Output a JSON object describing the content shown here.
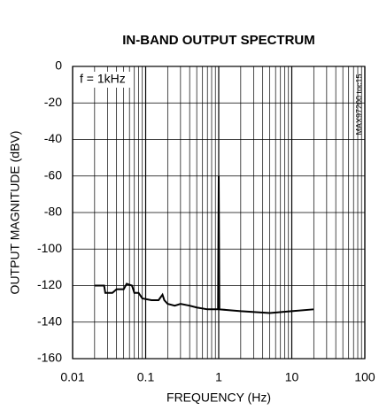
{
  "chart_data": {
    "type": "line",
    "title": "IN-BAND OUTPUT SPECTRUM",
    "xlabel": "FREQUENCY (Hz)",
    "ylabel": "OUTPUT MAGNITUDE (dBV)",
    "annotation": "f = 1kHz",
    "side_label": "MAX97200 toc15",
    "xscale": "log",
    "xlim": [
      0.01,
      100
    ],
    "xticks": [
      0.01,
      0.1,
      1,
      10,
      100
    ],
    "ylim": [
      -160,
      0
    ],
    "yticks": [
      0,
      -20,
      -40,
      -60,
      -80,
      -100,
      -120,
      -140,
      -160
    ],
    "grid": true,
    "series": [
      {
        "color": "#000000",
        "x": [
          0.02,
          0.027,
          0.028,
          0.035,
          0.04,
          0.05,
          0.055,
          0.065,
          0.07,
          0.08,
          0.09,
          0.12,
          0.15,
          0.17,
          0.18,
          0.2,
          0.25,
          0.3,
          0.4,
          0.5,
          0.7,
          0.9,
          0.98,
          1.0,
          1.02,
          2,
          5,
          10,
          20
        ],
        "values": [
          -120,
          -120,
          -124,
          -124,
          -122,
          -122,
          -119,
          -120,
          -124,
          -124,
          -127,
          -128,
          -128,
          -125,
          -128,
          -130,
          -131,
          -130,
          -131,
          -132,
          -133,
          -133,
          -133,
          -60,
          -133,
          -134,
          -135,
          -134,
          -133
        ]
      }
    ]
  }
}
